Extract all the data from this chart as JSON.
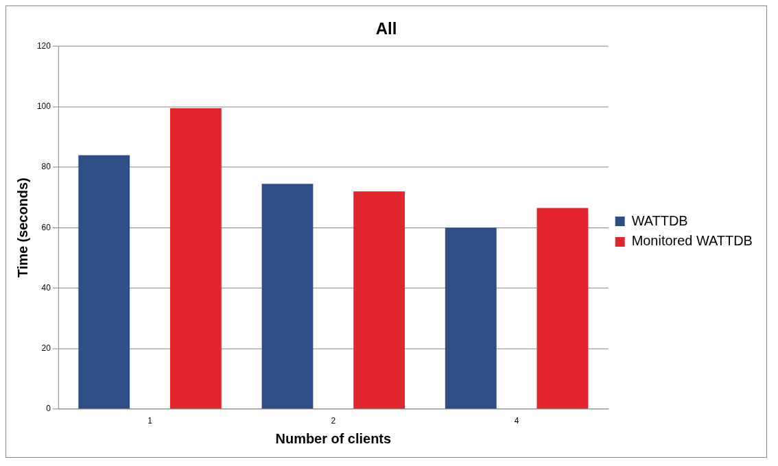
{
  "chart_data": {
    "type": "bar",
    "title": "All",
    "xlabel": "Number of clients",
    "ylabel": "Time (seconds)",
    "categories": [
      "1",
      "2",
      "4"
    ],
    "series": [
      {
        "name": "WATTDB",
        "color": "#2e4e86",
        "values": [
          84,
          74.5,
          60
        ]
      },
      {
        "name": "Monitored WATTDB",
        "color": "#e3262e",
        "values": [
          99.5,
          72,
          66.5
        ]
      }
    ],
    "ylim": [
      0,
      120
    ],
    "yticks": [
      0,
      20,
      40,
      60,
      80,
      100,
      120
    ],
    "grid": "y",
    "legend": "right"
  }
}
